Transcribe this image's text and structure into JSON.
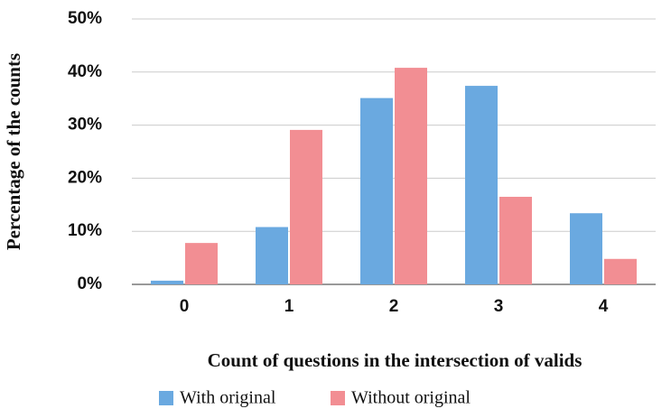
{
  "chart_data": {
    "type": "bar",
    "y_label": "Percentage of the counts",
    "x_label": "Count of questions in the intersection of valids",
    "categories": [
      "0",
      "1",
      "2",
      "3",
      "4"
    ],
    "series": [
      {
        "name": "With original",
        "color": "#6aa9e0",
        "values": [
          0.7,
          10.8,
          35.1,
          37.4,
          13.4
        ]
      },
      {
        "name": "Without original",
        "color": "#f28e93",
        "values": [
          7.8,
          29.1,
          40.8,
          16.5,
          4.8
        ]
      }
    ],
    "ylim": [
      0,
      50
    ],
    "yticks": [
      {
        "value": 0,
        "label": "0%"
      },
      {
        "value": 10,
        "label": "10%"
      },
      {
        "value": 20,
        "label": "20%"
      },
      {
        "value": 30,
        "label": "30%"
      },
      {
        "value": 40,
        "label": "40%"
      },
      {
        "value": 50,
        "label": "50%"
      }
    ],
    "grid": true
  }
}
